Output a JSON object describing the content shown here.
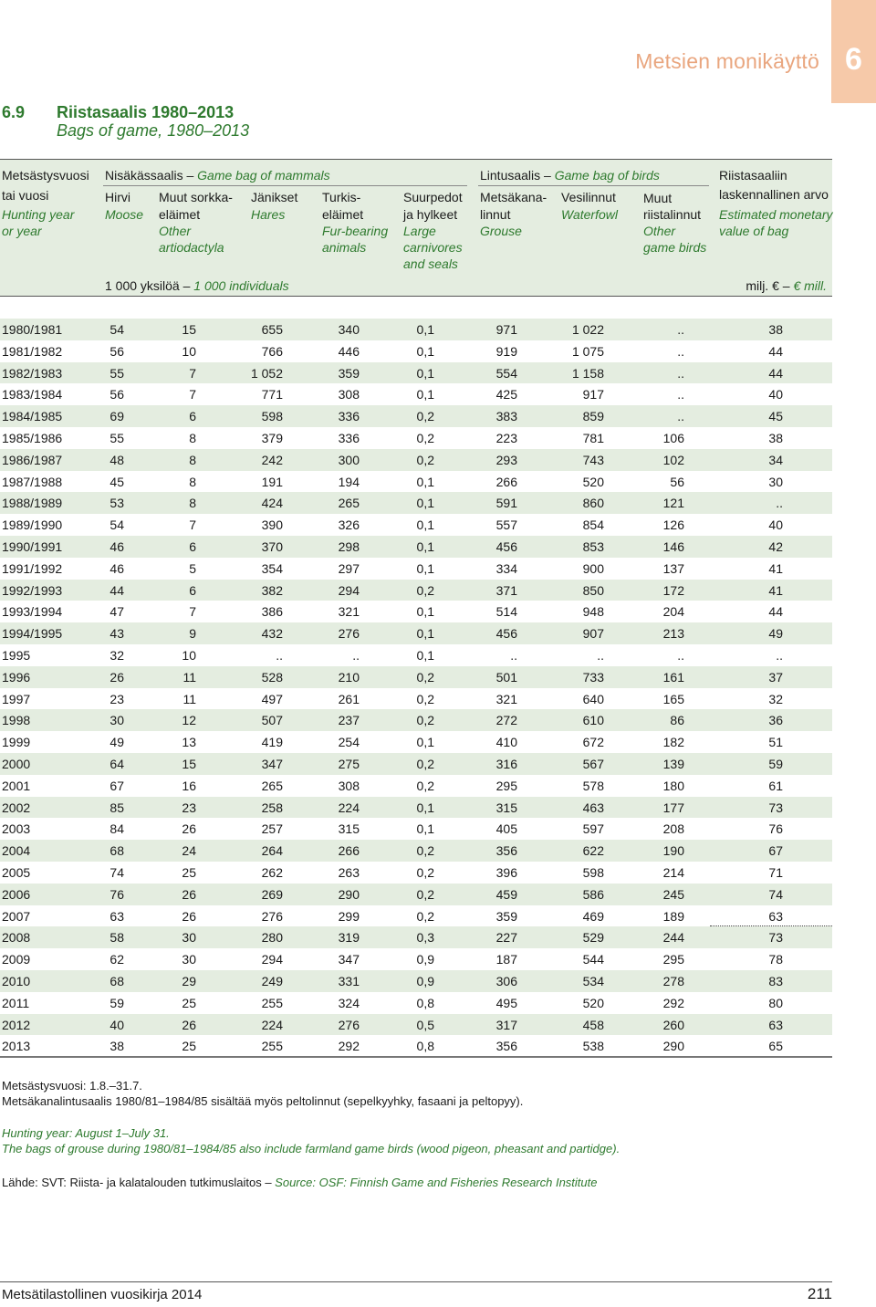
{
  "chapter": {
    "title": "Metsien monikäyttö",
    "number": "6"
  },
  "section": {
    "number": "6.9",
    "title": "Riistasaalis 1980–2013",
    "subtitle": "Bags of game, 1980–2013"
  },
  "header": {
    "col_year": [
      "Metsästysvuosi",
      "tai vuosi",
      "Hunting year",
      "or year"
    ],
    "mammals_group": {
      "fi": "Nisäkässaalis – ",
      "en": "Game bag of mammals"
    },
    "birds_group": {
      "fi": "Lintusaalis – ",
      "en": "Game bag of birds"
    },
    "value_group": [
      "Riistasaaliin",
      "laskennallinen arvo",
      "Estimated monetary",
      "value of bag"
    ],
    "moose": [
      "Hirvi",
      "Moose"
    ],
    "artiodactyla": [
      "Muut sorkka-",
      "eläimet",
      "Other",
      "artiodactyla"
    ],
    "hares": [
      "Jänikset",
      "Hares"
    ],
    "fur": [
      "Turkis-",
      "eläimet",
      "Fur-bearing",
      "animals"
    ],
    "carnivores": [
      "Suurpedot",
      "ja hylkeet",
      "Large",
      "carnivores",
      "and seals"
    ],
    "grouse": [
      "Metsäkana-",
      "linnut",
      "Grouse"
    ],
    "waterfowl": [
      "Vesilinnut",
      "Waterfowl"
    ],
    "other_birds": [
      "Muut",
      "riistalinnut",
      "Other",
      "game birds"
    ],
    "units_fi": "1 000 yksilöä – ",
    "units_en": "1 000 individuals",
    "value_unit_fi": "milj. € – ",
    "value_unit_en": "€ mill."
  },
  "rows": [
    [
      "1980/1981",
      "54",
      "15",
      "655",
      "340",
      "0,1",
      "971",
      "1 022",
      "..",
      "38"
    ],
    [
      "1981/1982",
      "56",
      "10",
      "766",
      "446",
      "0,1",
      "919",
      "1 075",
      "..",
      "44"
    ],
    [
      "1982/1983",
      "55",
      "7",
      "1 052",
      "359",
      "0,1",
      "554",
      "1 158",
      "..",
      "44"
    ],
    [
      "1983/1984",
      "56",
      "7",
      "771",
      "308",
      "0,1",
      "425",
      "917",
      "..",
      "40"
    ],
    [
      "1984/1985",
      "69",
      "6",
      "598",
      "336",
      "0,2",
      "383",
      "859",
      "..",
      "45"
    ],
    [
      "1985/1986",
      "55",
      "8",
      "379",
      "336",
      "0,2",
      "223",
      "781",
      "106",
      "38"
    ],
    [
      "1986/1987",
      "48",
      "8",
      "242",
      "300",
      "0,2",
      "293",
      "743",
      "102",
      "34"
    ],
    [
      "1987/1988",
      "45",
      "8",
      "191",
      "194",
      "0,1",
      "266",
      "520",
      "56",
      "30"
    ],
    [
      "1988/1989",
      "53",
      "8",
      "424",
      "265",
      "0,1",
      "591",
      "860",
      "121",
      ".."
    ],
    [
      "1989/1990",
      "54",
      "7",
      "390",
      "326",
      "0,1",
      "557",
      "854",
      "126",
      "40"
    ],
    [
      "1990/1991",
      "46",
      "6",
      "370",
      "298",
      "0,1",
      "456",
      "853",
      "146",
      "42"
    ],
    [
      "1991/1992",
      "46",
      "5",
      "354",
      "297",
      "0,1",
      "334",
      "900",
      "137",
      "41"
    ],
    [
      "1992/1993",
      "44",
      "6",
      "382",
      "294",
      "0,2",
      "371",
      "850",
      "172",
      "41"
    ],
    [
      "1993/1994",
      "47",
      "7",
      "386",
      "321",
      "0,1",
      "514",
      "948",
      "204",
      "44"
    ],
    [
      "1994/1995",
      "43",
      "9",
      "432",
      "276",
      "0,1",
      "456",
      "907",
      "213",
      "49"
    ],
    [
      "1995",
      "32",
      "10",
      "..",
      "..",
      "0,1",
      "..",
      "..",
      "..",
      ".."
    ],
    [
      "1996",
      "26",
      "11",
      "528",
      "210",
      "0,2",
      "501",
      "733",
      "161",
      "37"
    ],
    [
      "1997",
      "23",
      "11",
      "497",
      "261",
      "0,2",
      "321",
      "640",
      "165",
      "32"
    ],
    [
      "1998",
      "30",
      "12",
      "507",
      "237",
      "0,2",
      "272",
      "610",
      "86",
      "36"
    ],
    [
      "1999",
      "49",
      "13",
      "419",
      "254",
      "0,1",
      "410",
      "672",
      "182",
      "51"
    ],
    [
      "2000",
      "64",
      "15",
      "347",
      "275",
      "0,2",
      "316",
      "567",
      "139",
      "59"
    ],
    [
      "2001",
      "67",
      "16",
      "265",
      "308",
      "0,2",
      "295",
      "578",
      "180",
      "61"
    ],
    [
      "2002",
      "85",
      "23",
      "258",
      "224",
      "0,1",
      "315",
      "463",
      "177",
      "73"
    ],
    [
      "2003",
      "84",
      "26",
      "257",
      "315",
      "0,1",
      "405",
      "597",
      "208",
      "76"
    ],
    [
      "2004",
      "68",
      "24",
      "264",
      "266",
      "0,2",
      "356",
      "622",
      "190",
      "67"
    ],
    [
      "2005",
      "74",
      "25",
      "262",
      "263",
      "0,2",
      "396",
      "598",
      "214",
      "71"
    ],
    [
      "2006",
      "76",
      "26",
      "269",
      "290",
      "0,2",
      "459",
      "586",
      "245",
      "74"
    ],
    [
      "2007",
      "63",
      "26",
      "276",
      "299",
      "0,2",
      "359",
      "469",
      "189",
      "63"
    ],
    [
      "2008",
      "58",
      "30",
      "280",
      "319",
      "0,3",
      "227",
      "529",
      "244",
      "73"
    ],
    [
      "2009",
      "62",
      "30",
      "294",
      "347",
      "0,9",
      "187",
      "544",
      "295",
      "78"
    ],
    [
      "2010",
      "68",
      "29",
      "249",
      "331",
      "0,9",
      "306",
      "534",
      "278",
      "83"
    ],
    [
      "2011",
      "59",
      "25",
      "255",
      "324",
      "0,8",
      "495",
      "520",
      "292",
      "80"
    ],
    [
      "2012",
      "40",
      "26",
      "224",
      "276",
      "0,5",
      "317",
      "458",
      "260",
      "63"
    ],
    [
      "2013",
      "38",
      "25",
      "255",
      "292",
      "0,8",
      "356",
      "538",
      "290",
      "65"
    ]
  ],
  "notes": {
    "fi_1": "Metsästysvuosi: 1.8.–31.7.",
    "fi_2": "Metsäkanalintusaalis 1980/81–1984/85 sisältää myös peltolinnut (sepelkyyhky, fasaani ja peltopyy).",
    "en_1": "Hunting year: August 1–July 31.",
    "en_2": "The bags of grouse during 1980/81–1984/85 also include farmland game birds (wood pigeon, pheasant and partidge).",
    "source_fi": "Lähde: SVT: Riista- ja kalatalouden tutkimuslaitos – ",
    "source_en": "Source: OSF: Finnish Game and Fisheries Research Institute"
  },
  "footer": {
    "left": "Metsätilastollinen vuosikirja 2014",
    "right": "211"
  },
  "colors": {
    "accent_green": "#2e7a2e",
    "shade": "#e4ede0",
    "chapter_orange": "#e9a67f",
    "tab": "#f6c9a9"
  }
}
